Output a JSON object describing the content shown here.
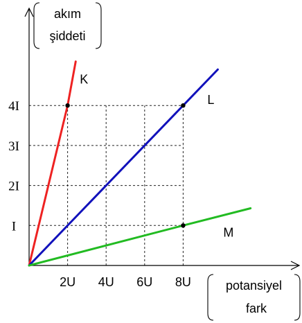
{
  "chart_data": {
    "type": "line",
    "ylabel": [
      "akım",
      "şiddeti"
    ],
    "xlabel": [
      "potansiyel",
      "fark"
    ],
    "x_ticks": [
      {
        "value": 2,
        "label": "2U"
      },
      {
        "value": 4,
        "label": "4U"
      },
      {
        "value": 6,
        "label": "6U"
      },
      {
        "value": 8,
        "label": "8U"
      }
    ],
    "y_ticks": [
      {
        "value": 1,
        "label": "I"
      },
      {
        "value": 2,
        "label": "2I"
      },
      {
        "value": 3,
        "label": "3I"
      },
      {
        "value": 4,
        "label": "4I"
      }
    ],
    "grid": true,
    "series": [
      {
        "name": "K",
        "color": "#ee2222",
        "x": [
          0,
          2,
          2.42
        ],
        "y": [
          0,
          4,
          5.1
        ]
      },
      {
        "name": "L",
        "color": "#1111bb",
        "x": [
          0,
          8,
          9.8
        ],
        "y": [
          0,
          4,
          4.9
        ]
      },
      {
        "name": "M",
        "color": "#22bb22",
        "x": [
          0,
          8,
          11.5
        ],
        "y": [
          0,
          1,
          1.43
        ]
      }
    ],
    "marked_points": [
      {
        "series": "K",
        "x": 2,
        "y": 4
      },
      {
        "series": "L",
        "x": 8,
        "y": 4
      },
      {
        "series": "M",
        "x": 8,
        "y": 1
      }
    ]
  }
}
